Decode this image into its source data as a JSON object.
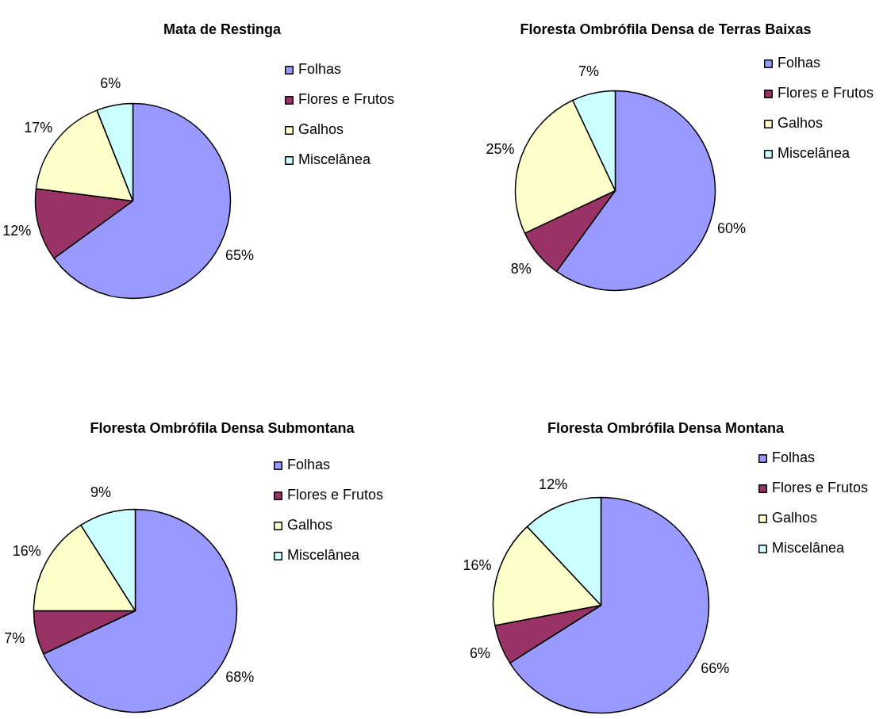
{
  "chart_data": [
    {
      "type": "pie",
      "title": "Mata de Restinga",
      "categories": [
        "Folhas",
        "Flores e Frutos",
        "Galhos",
        "Miscelânea"
      ],
      "values": [
        65,
        12,
        17,
        6
      ],
      "value_labels": [
        "65%",
        "12%",
        "17%",
        "6%"
      ],
      "colors": [
        "#9999ff",
        "#993366",
        "#ffffcc",
        "#ccffff"
      ],
      "legend": "right"
    },
    {
      "type": "pie",
      "title": "Floresta Ombrófila Densa de Terras Baixas",
      "categories": [
        "Folhas",
        "Flores e Frutos",
        "Galhos",
        "Miscelânea"
      ],
      "values": [
        60,
        8,
        25,
        7
      ],
      "value_labels": [
        "60%",
        "8%",
        "25%",
        "7%"
      ],
      "colors": [
        "#9999ff",
        "#993366",
        "#ffffcc",
        "#ccffff"
      ],
      "legend": "right"
    },
    {
      "type": "pie",
      "title": "Floresta Ombrófila Densa Submontana",
      "categories": [
        "Folhas",
        "Flores e Frutos",
        "Galhos",
        "Miscelânea"
      ],
      "values": [
        68,
        7,
        16,
        9
      ],
      "value_labels": [
        "68%",
        "7%",
        "16%",
        "9%"
      ],
      "colors": [
        "#9999ff",
        "#993366",
        "#ffffcc",
        "#ccffff"
      ],
      "legend": "right"
    },
    {
      "type": "pie",
      "title": "Floresta Ombrófila Densa Montana",
      "categories": [
        "Folhas",
        "Flores e Frutos",
        "Galhos",
        "Miscelânea"
      ],
      "values": [
        66,
        6,
        16,
        12
      ],
      "value_labels": [
        "66%",
        "6%",
        "16%",
        "12%"
      ],
      "colors": [
        "#9999ff",
        "#993366",
        "#ffffcc",
        "#ccffff"
      ],
      "legend": "right"
    }
  ]
}
